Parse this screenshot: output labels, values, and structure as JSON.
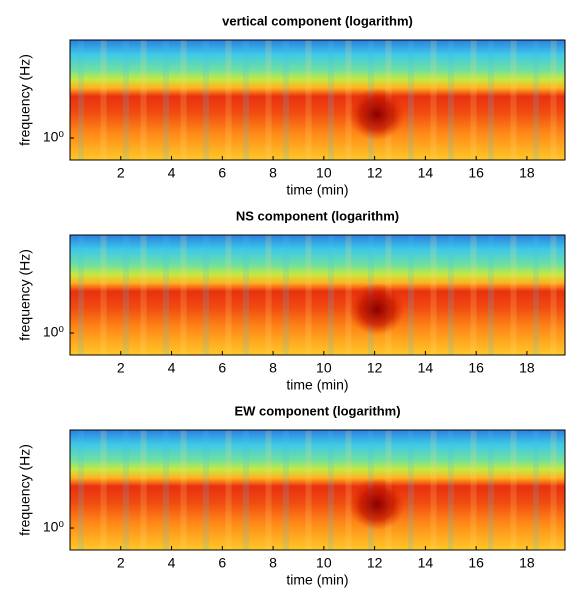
{
  "chart_data": [
    {
      "type": "heatmap",
      "title": "vertical component (logarithm)",
      "xlabel": "time (min)",
      "ylabel": "frequency (Hz)",
      "xlim": [
        0,
        19.5
      ],
      "xticks": [
        2,
        4,
        6,
        8,
        10,
        12,
        14,
        16,
        18
      ],
      "yscale": "log",
      "ylim": [
        0.5,
        22
      ],
      "yticks": [
        {
          "value": 1,
          "label": "10⁰"
        }
      ]
    },
    {
      "type": "heatmap",
      "title": "NS component (logarithm)",
      "xlabel": "time (min)",
      "ylabel": "frequency (Hz)",
      "xlim": [
        0,
        19.5
      ],
      "xticks": [
        2,
        4,
        6,
        8,
        10,
        12,
        14,
        16,
        18
      ],
      "yscale": "log",
      "ylim": [
        0.5,
        22
      ],
      "yticks": [
        {
          "value": 1,
          "label": "10⁰"
        }
      ]
    },
    {
      "type": "heatmap",
      "title": "EW component (logarithm)",
      "xlabel": "time (min)",
      "ylabel": "frequency (Hz)",
      "xlim": [
        0,
        19.5
      ],
      "xticks": [
        2,
        4,
        6,
        8,
        10,
        12,
        14,
        16,
        18
      ],
      "yscale": "log",
      "ylim": [
        0.5,
        22
      ],
      "yticks": [
        {
          "value": 1,
          "label": "10⁰"
        }
      ]
    }
  ]
}
